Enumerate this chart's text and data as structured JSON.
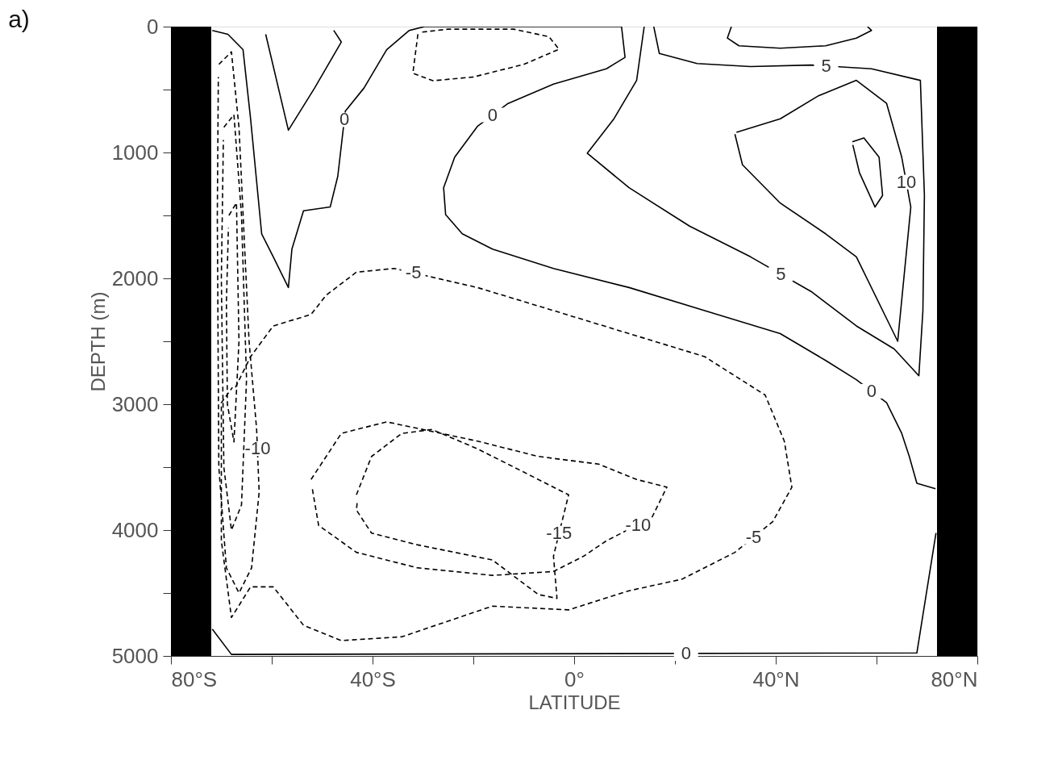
{
  "chart_data": {
    "type": "line",
    "title": "a)",
    "xlabel": "LATITUDE",
    "ylabel": "DEPTH (m)",
    "xlim": [
      -80,
      80
    ],
    "ylim": [
      5000,
      0
    ],
    "xticks": [
      {
        "value": -80,
        "label": "80°S"
      },
      {
        "value": -60,
        "label": null
      },
      {
        "value": -40,
        "label": "40°S"
      },
      {
        "value": -20,
        "label": null
      },
      {
        "value": 0,
        "label": "0°"
      },
      {
        "value": 20,
        "label": null
      },
      {
        "value": 40,
        "label": "40°N"
      },
      {
        "value": 60,
        "label": null
      },
      {
        "value": 80,
        "label": "80°N"
      }
    ],
    "yticks": [
      0,
      {
        "value": 500,
        "label": null
      },
      1000,
      {
        "value": 1500,
        "label": null
      },
      2000,
      {
        "value": 2500,
        "label": null
      },
      3000,
      {
        "value": 3500,
        "label": null
      },
      4000,
      {
        "value": 4500,
        "label": null
      },
      5000
    ],
    "grid": false,
    "bands": [
      {
        "axis": "x",
        "from": -80,
        "to": -72,
        "color": "#000000"
      },
      {
        "axis": "x",
        "from": 72,
        "to": 80,
        "color": "#000000"
      }
    ],
    "series": [
      {
        "color": "#000000",
        "line_style": "solid",
        "x": [
          -71.8,
          -68.7,
          -65.7,
          -64.2,
          -62.0,
          -59.7,
          -56.7,
          -56.0,
          -53.7,
          -48.4,
          -46.9,
          -45.4,
          -41.7,
          -37.2,
          -32.7,
          -29.7,
          9.4,
          10.1,
          6.4,
          -4.1,
          -13.1,
          -19.2,
          -23.7,
          -25.9,
          -25.5,
          -22.2,
          -16.2,
          -4.1,
          10.9,
          25.9,
          40.9,
          49.9,
          56.0,
          62.0,
          65.0,
          66.5,
          68.0,
          71.7
        ],
        "values": [
          30,
          61,
          183,
          732,
          1646,
          1829,
          2073,
          1768,
          1463,
          1433,
          1189,
          671,
          488,
          183,
          30,
          0,
          0,
          244,
          335,
          457,
          610,
          793,
          1037,
          1280,
          1494,
          1646,
          1768,
          1921,
          2073,
          2256,
          2439,
          2652,
          2805,
          2988,
          3232,
          3415,
          3628,
          3671
        ]
      },
      {
        "color": "#000000",
        "line_style": "solid",
        "x": [
          -71.8,
          -68.0,
          68.0,
          71.8
        ],
        "values": [
          4787,
          4988,
          4976,
          4024
        ]
      },
      {
        "color": "#000000",
        "line_style": "solid",
        "x": [
          31.2,
          30.4,
          32.7,
          40.9,
          49.9,
          56.0,
          59.0,
          58.2
        ],
        "values": [
          0,
          91,
          152,
          171,
          152,
          91,
          30,
          0
        ]
      },
      {
        "color": "#000000",
        "line_style": "solid",
        "x": [
          -61.2,
          -56.7,
          -51.5,
          -46.2,
          -47.7
        ],
        "values": [
          61,
          823,
          488,
          122,
          30
        ]
      },
      {
        "color": "#000000",
        "line_style": "solid",
        "x": [
          15.8,
          16.9,
          24.4,
          35.0,
          47.0,
          59.0,
          68.7,
          69.5,
          69.2,
          68.4,
          63.5,
          56.0,
          47.0,
          35.0,
          22.9,
          10.9,
          2.6,
          7.9,
          12.4,
          13.9
        ],
        "values": [
          0,
          213,
          293,
          317,
          305,
          335,
          427,
          1341,
          2256,
          2774,
          2561,
          2378,
          2104,
          1829,
          1585,
          1280,
          1006,
          732,
          427,
          0
        ]
      },
      {
        "color": "#000000",
        "line_style": "solid",
        "x": [
          31.9,
          33.4,
          40.9,
          49.9,
          56.0,
          64.2,
          66.8,
          65.0,
          62.0,
          56.0,
          48.5,
          40.9,
          32.2
        ],
        "values": [
          854,
          1098,
          1402,
          1646,
          1829,
          2500,
          1433,
          1037,
          610,
          427,
          549,
          732,
          840
        ]
      },
      {
        "color": "#000000",
        "line_style": "solid",
        "x": [
          55.2,
          57.5,
          60.5,
          61.2,
          59.7,
          56.6,
          55.3
        ],
        "values": [
          915,
          884,
          1037,
          1341,
          1433,
          1159,
          940
        ]
      },
      {
        "color": "#000000",
        "line_style": "dashed",
        "x": [
          -31.0,
          -32.0,
          -28.0,
          -20.0,
          -10.0,
          -3.0,
          -5.0,
          -12.0,
          -25.0,
          -30.5
        ],
        "values": [
          60,
          370,
          430,
          400,
          300,
          180,
          80,
          20,
          20,
          45
        ]
      },
      {
        "color": "#000000",
        "line_style": "dashed",
        "x": [
          -67.2,
          -64.2,
          -59.7,
          -52.2,
          -49.2,
          -43.2,
          -35.7,
          -19.2,
          -4.1,
          10.9,
          25.9,
          37.9,
          41.7,
          43.2,
          39.4,
          31.9,
          21.4,
          10.9,
          -1.1,
          -16.2,
          -25.2,
          -34.2,
          -46.2,
          -53.7,
          -59.7,
          -64.2,
          -68.0,
          -70.0,
          -70.0,
          -67.8
        ],
        "values": [
          2866,
          2622,
          2378,
          2287,
          2134,
          1951,
          1921,
          2073,
          2256,
          2439,
          2622,
          2927,
          3293,
          3659,
          3933,
          4177,
          4390,
          4482,
          4634,
          4604,
          4726,
          4848,
          4878,
          4756,
          4451,
          4451,
          4695,
          4085,
          2988,
          2866
        ]
      },
      {
        "color": "#000000",
        "line_style": "dashed",
        "x": [
          -52.2,
          -46.2,
          -37.2,
          -19.2,
          -7.1,
          4.9,
          12.4,
          18.4,
          15.4,
          6.4,
          1.9,
          -4.1,
          -16.2,
          -31.2,
          -43.2,
          -50.7,
          -52.0
        ],
        "values": [
          3598,
          3232,
          3140,
          3293,
          3415,
          3476,
          3598,
          3659,
          3902,
          4085,
          4207,
          4329,
          4360,
          4299,
          4177,
          3963,
          3660
        ]
      },
      {
        "color": "#000000",
        "line_style": "dashed",
        "x": [
          -43.2,
          -40.2,
          -34.2,
          -28.2,
          -19.2,
          -10.1,
          -1.1,
          -2.6,
          -4.1,
          -3.4,
          -7.1,
          -16.2,
          -31.2,
          -40.2,
          -43.2,
          -43.0
        ],
        "values": [
          3720,
          3415,
          3232,
          3201,
          3354,
          3537,
          3720,
          3963,
          4207,
          4543,
          4512,
          4238,
          4116,
          4024,
          3841,
          3760
        ]
      },
      {
        "color": "#000000",
        "line_style": "dashed",
        "x": [
          -70.5,
          -68.0,
          -66.5,
          -64.5,
          -63.0,
          -62.5,
          -64.0,
          -66.5,
          -69.0,
          -70.5,
          -70.8,
          -70.6
        ],
        "values": [
          300,
          200,
          800,
          2500,
          3200,
          3700,
          4300,
          4500,
          4300,
          3500,
          1500,
          400
        ]
      },
      {
        "color": "#000000",
        "line_style": "dashed",
        "x": [
          -69.5,
          -67.5,
          -66.0,
          -65.0,
          -66.0,
          -68.0,
          -69.5,
          -70.0,
          -69.6
        ],
        "values": [
          800,
          700,
          1500,
          2800,
          3800,
          4000,
          3500,
          2000,
          900
        ]
      },
      {
        "color": "#000000",
        "line_style": "dashed",
        "x": [
          -68.5,
          -67.0,
          -66.5,
          -67.5,
          -68.8,
          -69.0,
          -68.6
        ],
        "values": [
          1500,
          1400,
          2500,
          3300,
          3000,
          2200,
          1600
        ]
      }
    ],
    "annotations": [
      {
        "text": "0",
        "x": -45.6,
        "y": 740
      },
      {
        "text": "0",
        "x": -16.2,
        "y": 702
      },
      {
        "text": "5",
        "x": 50.0,
        "y": 313
      },
      {
        "text": "10",
        "x": 65.9,
        "y": 1235
      },
      {
        "text": "5",
        "x": 41.0,
        "y": 1966
      },
      {
        "text": "0",
        "x": 59.0,
        "y": 2897
      },
      {
        "text": "-5",
        "x": -31.9,
        "y": 1956
      },
      {
        "text": "-10",
        "x": -62.8,
        "y": 3354
      },
      {
        "text": "-15",
        "x": -3.0,
        "y": 4024
      },
      {
        "text": "-10",
        "x": 12.7,
        "y": 3963
      },
      {
        "text": "-5",
        "x": 35.6,
        "y": 4055
      },
      {
        "text": "0",
        "x": 22.2,
        "y": 4981
      }
    ]
  }
}
